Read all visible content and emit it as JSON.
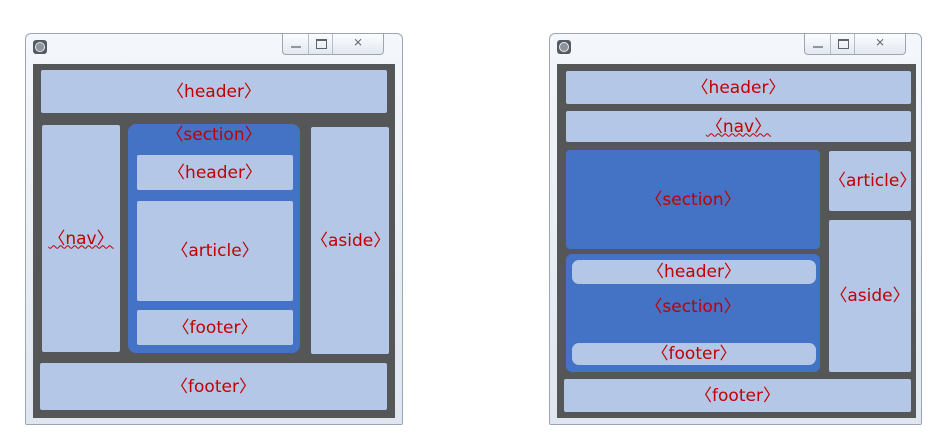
{
  "left_window": {
    "controls": {
      "close_glyph": "⨯"
    },
    "header": "〈header〉",
    "nav": "〈nav〉",
    "section": "〈section〉",
    "section_header": "〈header〉",
    "section_article": "〈article〉",
    "section_footer": "〈footer〉",
    "aside": "〈aside〉",
    "footer": "〈footer〉"
  },
  "right_window": {
    "controls": {
      "close_glyph": "⨯"
    },
    "header": "〈header〉",
    "nav": "〈nav〉",
    "section_top": "〈section〉",
    "article": "〈article〉",
    "section_bottom": "〈section〉",
    "section_bottom_header": "〈header〉",
    "section_bottom_footer": "〈footer〉",
    "aside": "〈aside〉",
    "footer": "〈footer〉"
  },
  "colors": {
    "client_bg": "#545657",
    "box_light": "#b4c7e7",
    "box_section": "#4472c4",
    "label_text": "#c00000"
  }
}
